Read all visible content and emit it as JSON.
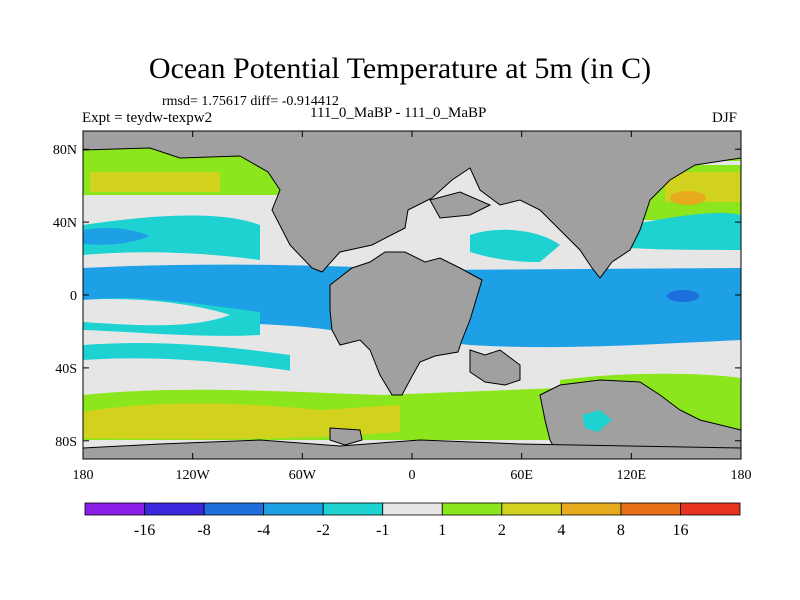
{
  "plot": {
    "title": "Ocean Potential Temperature at 5m (in C)",
    "stats": "rmsd= 1.75617 diff= -0.914412",
    "experiment": "Expt = teydw-texpw2",
    "runs": "111_0_MaBP - 111_0_MaBP",
    "season": "DJF"
  },
  "axes": {
    "lon_ticks": [
      {
        "value": -180,
        "label": "180"
      },
      {
        "value": -120,
        "label": "120W"
      },
      {
        "value": -60,
        "label": "60W"
      },
      {
        "value": 0,
        "label": "0"
      },
      {
        "value": 60,
        "label": "60E"
      },
      {
        "value": 120,
        "label": "120E"
      },
      {
        "value": 180,
        "label": "180"
      }
    ],
    "lat_ticks": [
      {
        "value": 80,
        "label": "80N"
      },
      {
        "value": 40,
        "label": "40N"
      },
      {
        "value": 0,
        "label": "0"
      },
      {
        "value": -40,
        "label": "40S"
      },
      {
        "value": -80,
        "label": "80S"
      }
    ],
    "lon_range": [
      -180,
      180
    ],
    "lat_range": [
      -90,
      90
    ]
  },
  "colorbar": {
    "colors": [
      "#8a1ee6",
      "#3c28dc",
      "#1e6edc",
      "#1ea0e6",
      "#1ed2d2",
      "#e6e6e6",
      "#8ce61e",
      "#d2d21e",
      "#e6aa1e",
      "#e66e14",
      "#e6321e"
    ],
    "labels": [
      "-16",
      "-8",
      "-4",
      "-2",
      "-1",
      "1",
      "2",
      "4",
      "8",
      "16"
    ]
  },
  "chart_data": {
    "type": "heatmap",
    "title": "Ocean Potential Temperature at 5m (in C)",
    "variable": "ocean potential temperature difference at 5m",
    "units": "C",
    "season": "DJF",
    "experiment": "teydw-texpw2",
    "rmsd": 1.75617,
    "diff": -0.914412,
    "x_range": [
      -180,
      180
    ],
    "y_range": [
      -90,
      90
    ],
    "contour_levels": [
      -16,
      -8,
      -4,
      -2,
      -1,
      1,
      2,
      4,
      8,
      16
    ],
    "missing_color": "#a0a0a0"
  }
}
